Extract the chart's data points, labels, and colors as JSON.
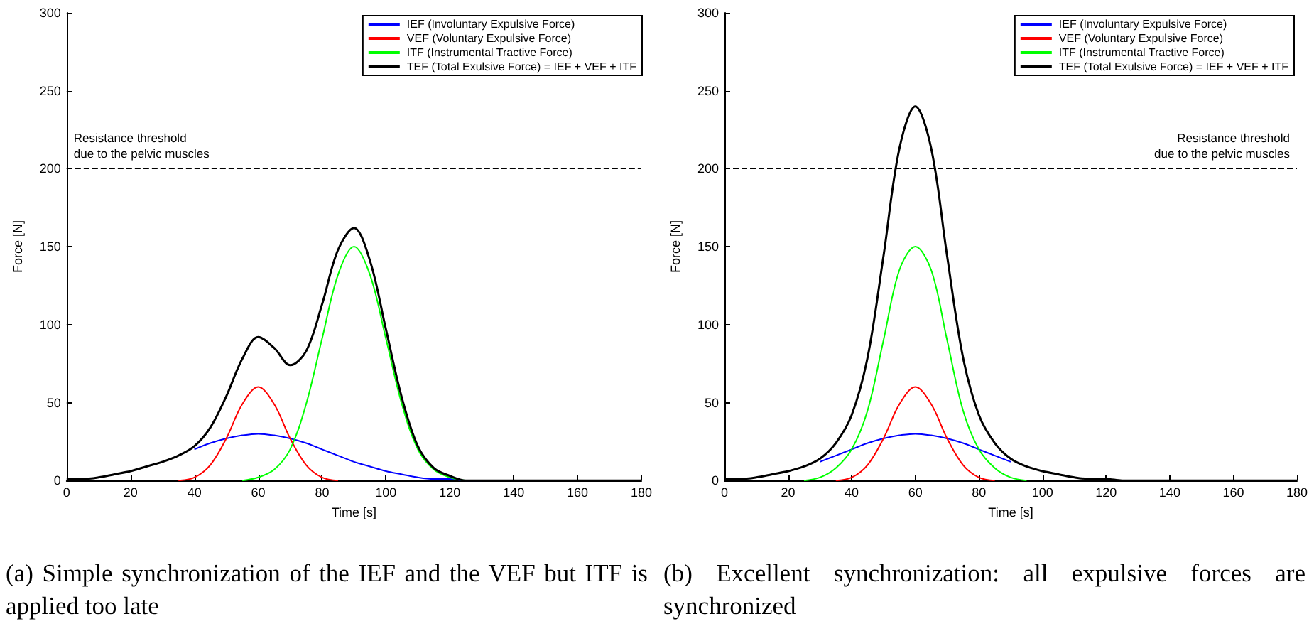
{
  "chart_data": [
    {
      "type": "line",
      "xlabel": "Time [s]",
      "ylabel": "Force [N]",
      "annotations": [
        "(a) Simple synchronization of the IEF and the VEF but ITF is applied too late"
      ],
      "x": [
        0,
        5,
        10,
        15,
        20,
        25,
        30,
        35,
        40,
        45,
        50,
        55,
        60,
        65,
        70,
        75,
        80,
        85,
        90,
        95,
        100,
        105,
        110,
        115,
        120,
        125,
        130,
        135,
        140,
        145,
        150,
        155,
        160,
        165,
        170,
        175,
        180
      ],
      "series": [
        {
          "name": "IEF (Involuntary Expulsive Force)",
          "color": "#0000ff",
          "values": [
            null,
            null,
            null,
            null,
            null,
            null,
            null,
            null,
            20,
            24,
            27,
            29,
            30,
            29,
            27,
            24,
            20,
            16,
            12,
            9,
            6,
            4,
            2,
            1,
            1,
            0,
            0,
            null,
            null,
            null,
            null,
            null,
            null,
            null,
            null,
            null,
            null
          ]
        },
        {
          "name": "VEF (Voluntary Expulsive Force)",
          "color": "#ff0000",
          "values": [
            null,
            null,
            null,
            null,
            null,
            null,
            null,
            0,
            2,
            10,
            27,
            49,
            60,
            49,
            27,
            10,
            2,
            0,
            null,
            null,
            null,
            null,
            null,
            null,
            null,
            null,
            null,
            null,
            null,
            null,
            null,
            null,
            null,
            null,
            null,
            null,
            null
          ]
        },
        {
          "name": "ITF (Instrumental Tractive Force)",
          "color": "#00ff00",
          "values": [
            null,
            null,
            null,
            null,
            null,
            null,
            null,
            null,
            null,
            null,
            null,
            0,
            2,
            7,
            20,
            49,
            91,
            132,
            150,
            132,
            91,
            49,
            20,
            7,
            2,
            0,
            null,
            null,
            null,
            null,
            null,
            null,
            null,
            null,
            null,
            null,
            null
          ]
        },
        {
          "name": "TEF (Total Exulsive Force) = IEF + VEF + ITF",
          "color": "#000000",
          "values": [
            1,
            1,
            2,
            4,
            6,
            9,
            12,
            16,
            22,
            34,
            54,
            78,
            92,
            85,
            74,
            83,
            113,
            148,
            162,
            141,
            97,
            53,
            22,
            8,
            3,
            0,
            0,
            0,
            0,
            0,
            0,
            0,
            0,
            0,
            0,
            0,
            0
          ]
        }
      ],
      "xlim": [
        0,
        180
      ],
      "xticks": [
        0,
        20,
        40,
        60,
        80,
        100,
        120,
        140,
        160,
        180
      ],
      "ylim": [
        0,
        300
      ],
      "yticks": [
        0,
        50,
        100,
        150,
        200,
        250,
        300
      ],
      "ref_lines": [
        {
          "axis": "y",
          "value": 200,
          "label": "Resistance threshold\ndue to the pelvic muscles",
          "color": "#000000",
          "line_style": "dashed"
        }
      ],
      "grid": false,
      "legend": "top right",
      "marker": "none",
      "line_style": "solid"
    },
    {
      "type": "line",
      "xlabel": "Time [s]",
      "ylabel": "Force [N]",
      "annotations": [
        "(b) Excellent synchronization: all expulsive forces are synchronized"
      ],
      "x": [
        0,
        5,
        10,
        15,
        20,
        25,
        30,
        35,
        40,
        45,
        50,
        55,
        60,
        65,
        70,
        75,
        80,
        85,
        90,
        95,
        100,
        105,
        110,
        115,
        120,
        125,
        130,
        135,
        140,
        145,
        150,
        155,
        160,
        165,
        170,
        175,
        180
      ],
      "series": [
        {
          "name": "IEF (Involuntary Expulsive Force)",
          "color": "#0000ff",
          "values": [
            null,
            null,
            null,
            null,
            null,
            null,
            12,
            16,
            20,
            24,
            27,
            29,
            30,
            29,
            27,
            24,
            20,
            16,
            12,
            null,
            null,
            null,
            null,
            null,
            null,
            null,
            null,
            null,
            null,
            null,
            null,
            null,
            null,
            null,
            null,
            null,
            null
          ]
        },
        {
          "name": "VEF (Voluntary Expulsive Force)",
          "color": "#ff0000",
          "values": [
            null,
            null,
            null,
            null,
            null,
            null,
            null,
            0,
            2,
            10,
            27,
            49,
            60,
            49,
            27,
            10,
            2,
            0,
            null,
            null,
            null,
            null,
            null,
            null,
            null,
            null,
            null,
            null,
            null,
            null,
            null,
            null,
            null,
            null,
            null,
            null,
            null
          ]
        },
        {
          "name": "ITF (Instrumental Tractive Force)",
          "color": "#00ff00",
          "values": [
            null,
            null,
            null,
            null,
            null,
            0,
            2,
            8,
            20,
            45,
            90,
            135,
            150,
            135,
            90,
            45,
            20,
            8,
            2,
            0,
            null,
            null,
            null,
            null,
            null,
            null,
            null,
            null,
            null,
            null,
            null,
            null,
            null,
            null,
            null,
            null,
            null
          ]
        },
        {
          "name": "TEF (Total Exulsive Force) = IEF + VEF + ITF",
          "color": "#000000",
          "values": [
            1,
            1,
            2,
            4,
            6,
            9,
            14,
            24,
            42,
            79,
            144,
            213,
            240,
            213,
            144,
            79,
            42,
            24,
            14,
            9,
            6,
            4,
            2,
            1,
            1,
            0,
            0,
            0,
            0,
            0,
            0,
            0,
            0,
            0,
            0,
            0,
            0
          ]
        }
      ],
      "xlim": [
        0,
        180
      ],
      "xticks": [
        0,
        20,
        40,
        60,
        80,
        100,
        120,
        140,
        160,
        180
      ],
      "ylim": [
        0,
        300
      ],
      "yticks": [
        0,
        50,
        100,
        150,
        200,
        250,
        300
      ],
      "ref_lines": [
        {
          "axis": "y",
          "value": 200,
          "label": "Resistance threshold\ndue to the pelvic muscles",
          "color": "#000000",
          "line_style": "dashed"
        }
      ],
      "grid": false,
      "legend": "top right",
      "marker": "none",
      "line_style": "solid"
    }
  ]
}
